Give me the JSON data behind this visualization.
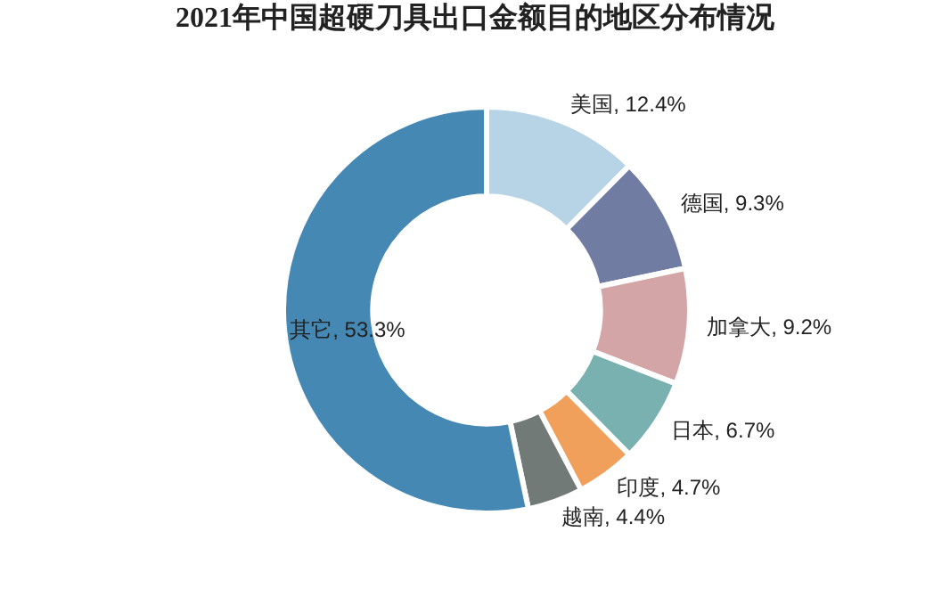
{
  "chart_data": {
    "type": "donut",
    "title": "2021年中国超硬刀具出口金额目的地区分布情况",
    "categories": [
      "美国",
      "德国",
      "加拿大",
      "日本",
      "印度",
      "越南",
      "其它"
    ],
    "values": [
      12.4,
      9.3,
      9.2,
      6.7,
      4.7,
      4.4,
      53.3
    ],
    "value_labels": [
      "12.4%",
      "9.3%",
      "9.2%",
      "6.7%",
      "4.7%",
      "4.4%",
      "53.3%"
    ],
    "colors": [
      "#b7d4e6",
      "#717ca3",
      "#d4a5a6",
      "#78b1b0",
      "#f0a05a",
      "#717a77",
      "#4488b3"
    ],
    "legend": false
  }
}
